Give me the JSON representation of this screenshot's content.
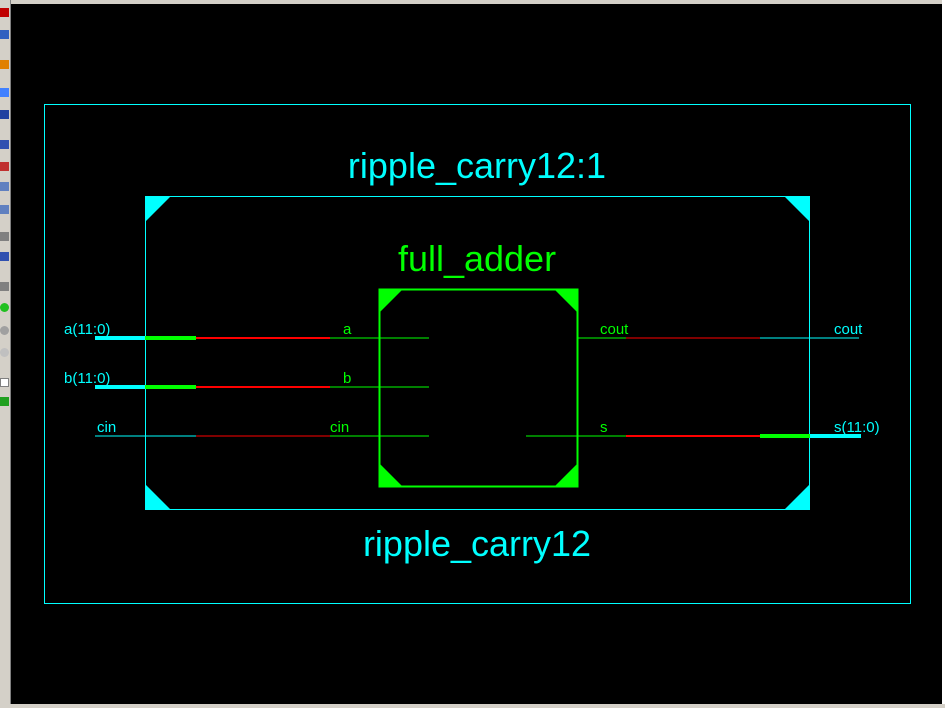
{
  "colors": {
    "background": "#000000",
    "module": "#00ffff",
    "instance": "#00ff00",
    "bus_net": "#ff0000"
  },
  "toolbar": {
    "buttons": [
      "zoom-icon",
      "fit-icon",
      "star-icon",
      "arrow-icon",
      "hand-icon",
      "box-icon",
      "cross-icon",
      "grid-icon",
      "window-icon",
      "text-icon",
      "search-icon",
      "green-circle-icon",
      "grey-circle-icon",
      "stop-icon",
      "square-icon",
      "plus-icon"
    ]
  },
  "schematic": {
    "module_instance_name": "ripple_carry12:1",
    "module_name": "ripple_carry12",
    "submodule_name": "full_adder",
    "ports": {
      "a_in": "a(11:0)",
      "b_in": "b(11:0)",
      "cin_in": "cin",
      "cout_out": "cout",
      "s_out": "s(11:0)"
    },
    "pins": {
      "a": "a",
      "b": "b",
      "cin": "cin",
      "cout": "cout",
      "s": "s"
    }
  }
}
